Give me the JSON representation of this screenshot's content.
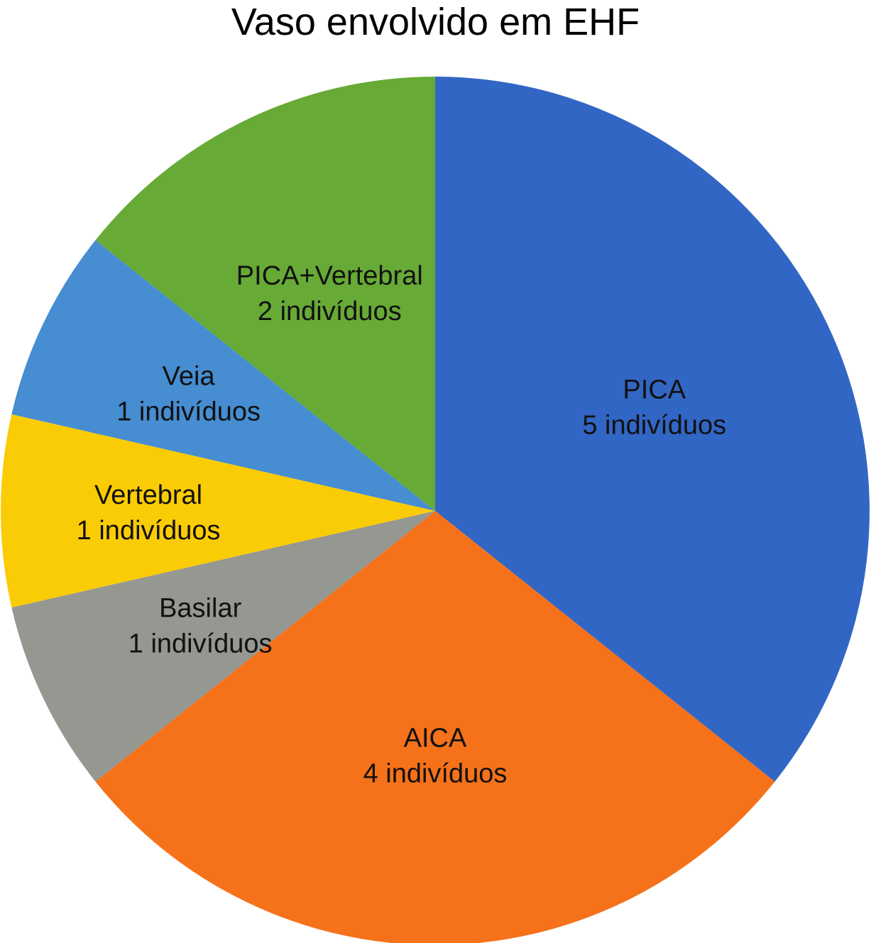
{
  "chart_data": {
    "type": "pie",
    "title": "Vaso envolvido em EHF",
    "unit": "indivíduos",
    "slices": [
      {
        "name": "PICA",
        "value": 5,
        "label_value": "5 indivíduos",
        "color": "#3266C5"
      },
      {
        "name": "AICA",
        "value": 4,
        "label_value": "4 indivíduos",
        "color": "#F5711A"
      },
      {
        "name": "Basilar",
        "value": 1,
        "label_value": "1 indivíduos",
        "color": "#959791"
      },
      {
        "name": "Vertebral",
        "value": 1,
        "label_value": "1 indivíduos",
        "color": "#FACC05"
      },
      {
        "name": "Veia",
        "value": 1,
        "label_value": "1 indivíduos",
        "color": "#468DD1"
      },
      {
        "name": "PICA+Vertebral",
        "value": 2,
        "label_value": "2 indivíduos",
        "color": "#67AA36"
      }
    ]
  }
}
